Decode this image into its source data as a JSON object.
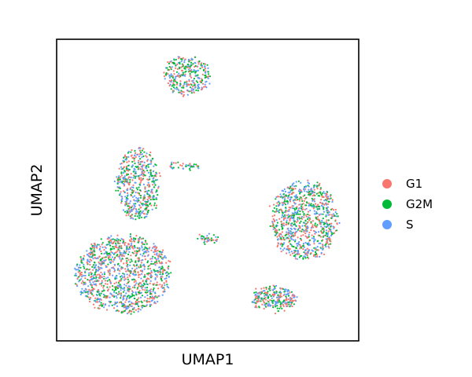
{
  "chart_data": {
    "type": "scatter",
    "title": "",
    "xlabel": "UMAP1",
    "ylabel": "UMAP2",
    "xticks": [],
    "yticks": [],
    "grid": false,
    "legend": {
      "placement": "right",
      "entries": [
        {
          "name": "G1",
          "color": "#F8766D"
        },
        {
          "name": "G2M",
          "color": "#00BA38"
        },
        {
          "name": "S",
          "color": "#619CFF"
        }
      ]
    },
    "xlim": [
      0,
      1
    ],
    "ylim": [
      0,
      1
    ],
    "clusters": [
      {
        "id": "top-small",
        "cx": 0.43,
        "cy": 0.88,
        "rx": 0.075,
        "ry": 0.065,
        "n": 320
      },
      {
        "id": "left-upper",
        "cx": 0.27,
        "cy": 0.52,
        "rx": 0.07,
        "ry": 0.12,
        "n": 520
      },
      {
        "id": "left-lower",
        "cx": 0.22,
        "cy": 0.22,
        "rx": 0.16,
        "ry": 0.13,
        "n": 1200
      },
      {
        "id": "right-large",
        "cx": 0.82,
        "cy": 0.4,
        "rx": 0.11,
        "ry": 0.13,
        "n": 900
      },
      {
        "id": "right-small",
        "cx": 0.72,
        "cy": 0.14,
        "rx": 0.075,
        "ry": 0.04,
        "n": 260
      },
      {
        "id": "bridge-upper",
        "cx": 0.42,
        "cy": 0.58,
        "rx": 0.06,
        "ry": 0.012,
        "n": 40
      },
      {
        "id": "bridge-lower",
        "cx": 0.5,
        "cy": 0.34,
        "rx": 0.04,
        "ry": 0.012,
        "n": 40
      }
    ]
  }
}
